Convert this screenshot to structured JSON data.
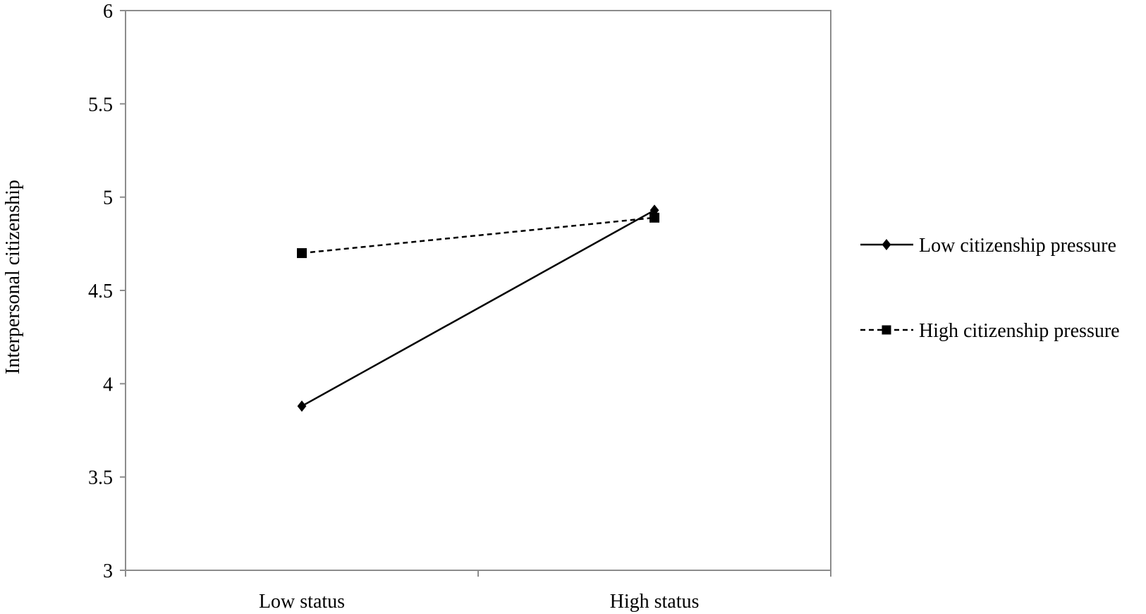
{
  "chart_data": {
    "type": "line",
    "title": "",
    "xlabel": "",
    "ylabel": "Interpersonal citizenship",
    "categories": [
      "Low status",
      "High status"
    ],
    "ylim": [
      3,
      6
    ],
    "yticks": [
      "3",
      "3.5",
      "4",
      "4.5",
      "5",
      "5.5",
      "6"
    ],
    "grid": false,
    "legend_position": "right",
    "series": [
      {
        "name": "Low citizenship pressure",
        "values": [
          3.88,
          4.93
        ],
        "line_style": "solid",
        "marker": "diamond",
        "color": "#000000"
      },
      {
        "name": "High citizenship pressure",
        "values": [
          4.7,
          4.89
        ],
        "line_style": "dashed",
        "marker": "square",
        "color": "#000000"
      }
    ]
  }
}
